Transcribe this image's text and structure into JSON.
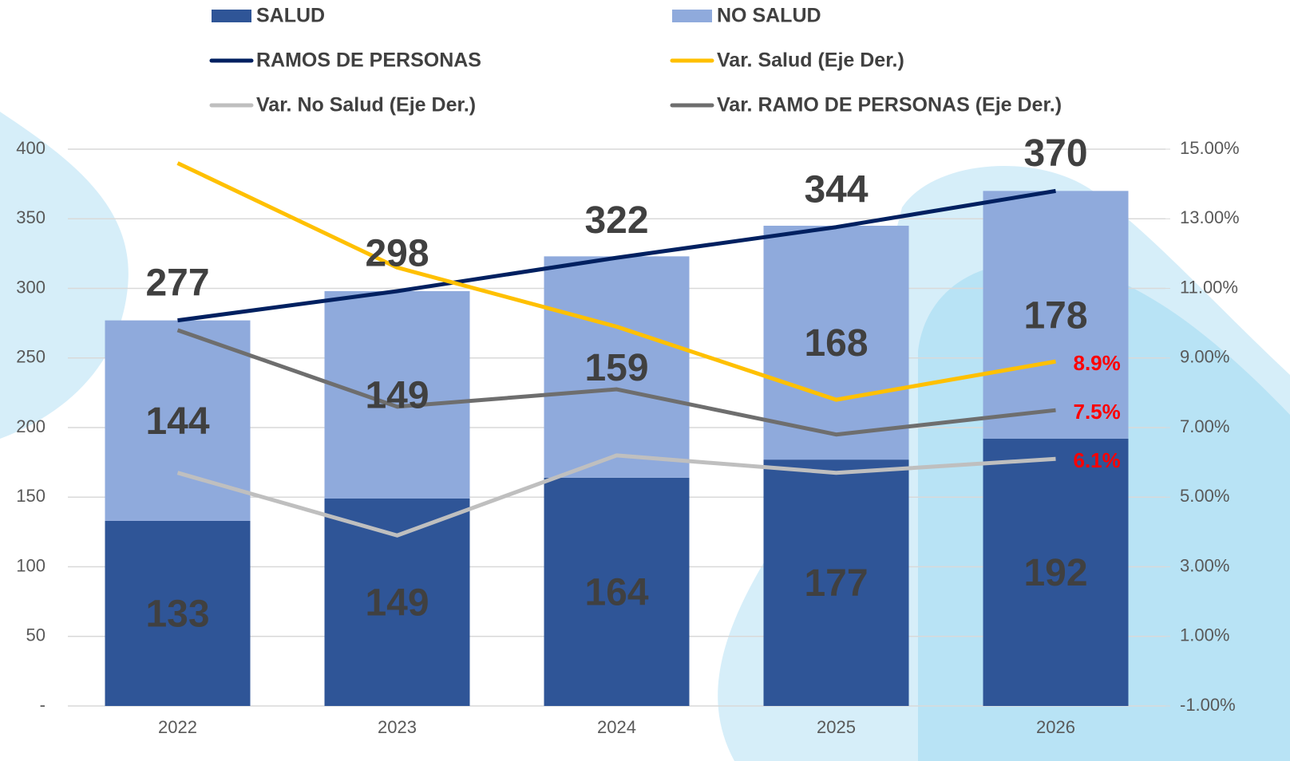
{
  "chart_data": {
    "type": "bar",
    "stacked": true,
    "categories": [
      "2022",
      "2023",
      "2024",
      "2025",
      "2026"
    ],
    "ylim": [
      0,
      400
    ],
    "yticks": [
      {
        "value": 0,
        "label": "-"
      },
      50,
      100,
      150,
      200,
      250,
      300,
      350,
      400
    ],
    "y2lim": [
      -1,
      15
    ],
    "y2ticks": [
      {
        "value": -1,
        "label": "-1.00%"
      },
      {
        "value": 1,
        "label": "1.00%"
      },
      {
        "value": 3,
        "label": "3.00%"
      },
      {
        "value": 5,
        "label": "5.00%"
      },
      {
        "value": 7,
        "label": "7.00%"
      },
      {
        "value": 9,
        "label": "9.00%"
      },
      {
        "value": 11,
        "label": "11.00%"
      },
      {
        "value": 13,
        "label": "13.00%"
      },
      {
        "value": 15,
        "label": "15.00%"
      }
    ],
    "grid": true,
    "legend": "top",
    "series": [
      {
        "name": "SALUD",
        "type": "bar",
        "color": "#2f5597",
        "values": [
          133,
          149,
          164,
          177,
          192
        ]
      },
      {
        "name": "NO SALUD",
        "type": "bar",
        "color": "#8faadc",
        "values": [
          144,
          149,
          159,
          168,
          178
        ]
      },
      {
        "name": "RAMOS DE PERSONAS",
        "type": "line",
        "color": "#002060",
        "values": [
          277,
          298,
          322,
          344,
          370
        ]
      },
      {
        "name": "Var. Salud (Eje Der.)",
        "type": "line",
        "axis": "y2",
        "color": "#ffc000",
        "values": [
          14.6,
          11.6,
          9.9,
          7.8,
          8.9
        ],
        "value_labels": [
          null,
          null,
          null,
          null,
          "8.9%"
        ]
      },
      {
        "name": "Var. No Salud (Eje Der.)",
        "type": "line",
        "axis": "y2",
        "color": "#bfbfbf",
        "values": [
          5.7,
          3.9,
          6.2,
          5.7,
          6.1
        ],
        "value_labels": [
          null,
          null,
          null,
          null,
          "6.1%"
        ]
      },
      {
        "name": "Var. RAMO DE PERSONAS (Eje Der.)",
        "type": "line",
        "axis": "y2",
        "color": "#6e6e6e",
        "values": [
          9.8,
          7.6,
          8.1,
          6.8,
          7.5
        ],
        "value_labels": [
          null,
          null,
          null,
          null,
          "7.5%"
        ]
      }
    ]
  }
}
